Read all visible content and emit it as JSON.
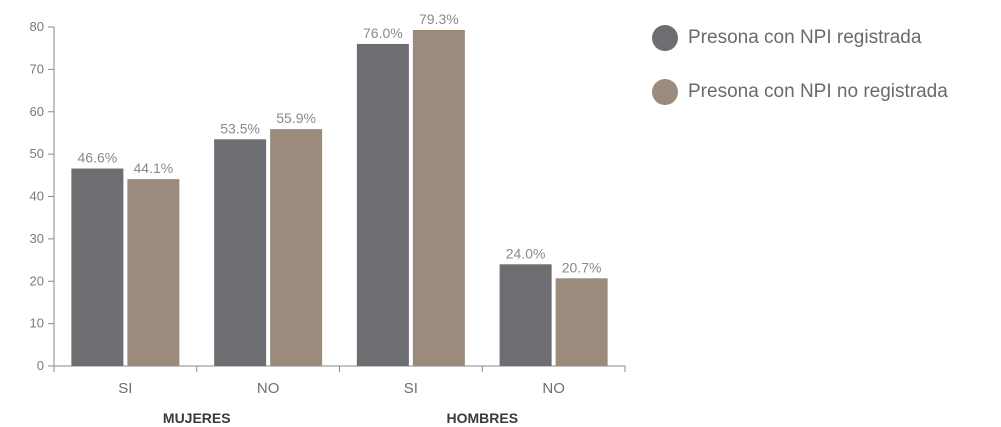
{
  "chart_data": {
    "type": "bar",
    "title": "",
    "xlabel": "",
    "ylabel": "",
    "ylim": [
      0,
      80
    ],
    "yticks": [
      0,
      10,
      20,
      30,
      40,
      50,
      60,
      70,
      80
    ],
    "groups": [
      "MUJERES",
      "HOMBRES"
    ],
    "categories": [
      "SI",
      "NO",
      "SI",
      "NO"
    ],
    "category_group": [
      0,
      0,
      1,
      1
    ],
    "series": [
      {
        "name": "Presona con NPI registrada",
        "color": "#6e6d72",
        "values": [
          46.6,
          53.5,
          76.0,
          24.0
        ],
        "labels": [
          "46.6%",
          "53.5%",
          "76.0%",
          "24.0%"
        ]
      },
      {
        "name": "Presona con NPI no registrada",
        "color": "#9a8b7d",
        "values": [
          44.1,
          55.9,
          79.3,
          20.7
        ],
        "labels": [
          "44.1%",
          "55.9%",
          "79.3%",
          "20.7%"
        ]
      }
    ],
    "grid": false,
    "legend_position": "top-right"
  }
}
